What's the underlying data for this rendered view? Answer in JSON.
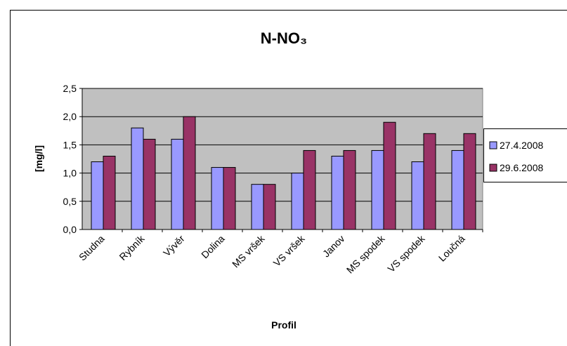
{
  "chart_data": {
    "type": "bar",
    "title": "N-NO₃",
    "x_label": "Profil",
    "y_label": "[mg/l]",
    "categories": [
      "Studna",
      "Rybník",
      "Vývěr",
      "Dolina",
      "MS vršek",
      "VS vršek",
      "Janov",
      "MS spodek",
      "VS spodek",
      "Loučná"
    ],
    "series": [
      {
        "name": "27.4.2008",
        "color": "#9999ff",
        "values": [
          1.2,
          1.8,
          1.6,
          1.1,
          0.8,
          1.0,
          1.3,
          1.4,
          1.2,
          1.4
        ]
      },
      {
        "name": "29.6.2008",
        "color": "#993366",
        "values": [
          1.3,
          1.6,
          2.0,
          1.1,
          0.8,
          1.4,
          1.4,
          1.9,
          1.7,
          1.7
        ]
      }
    ],
    "ylim": [
      0,
      2.5
    ],
    "yticks": [
      {
        "value": 0,
        "label": "0,0"
      },
      {
        "value": 0.5,
        "label": "0,5"
      },
      {
        "value": 1,
        "label": "1,0"
      },
      {
        "value": 1.5,
        "label": "1,5"
      },
      {
        "value": 2,
        "label": "2,0"
      },
      {
        "value": 2.5,
        "label": "2,5"
      }
    ],
    "grid": true,
    "legend": "right"
  }
}
